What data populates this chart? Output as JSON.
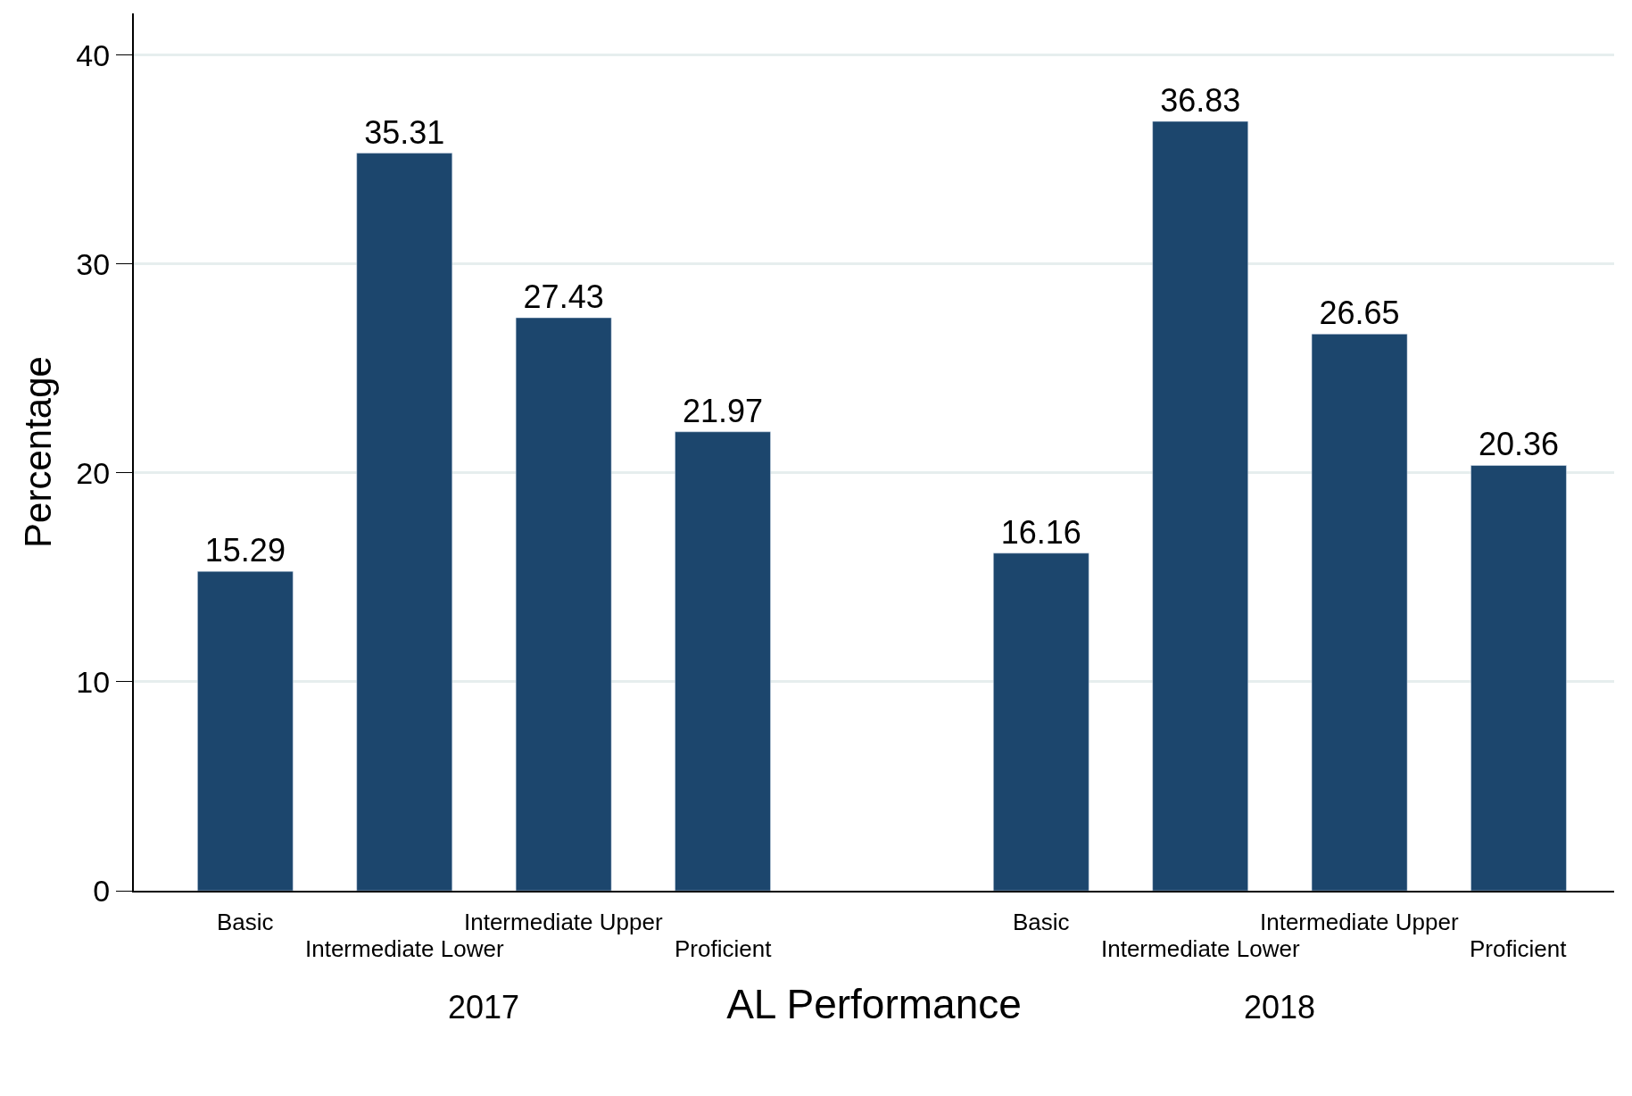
{
  "chart_data": {
    "type": "bar",
    "xlabel": "AL Performance",
    "ylabel": "Percentage",
    "categories": [
      "Basic",
      "Intermediate Lower",
      "Intermediate Upper",
      "Proficient",
      null,
      "Basic",
      "Intermediate Lower",
      "Intermediate Upper",
      "Proficient"
    ],
    "values": [
      15.29,
      35.31,
      27.43,
      21.97,
      null,
      16.16,
      36.83,
      26.65,
      20.36
    ],
    "color": "#1c466d",
    "data_labels": true,
    "grid": "y",
    "legend": false,
    "ylim": [
      0,
      42
    ],
    "yticks": [
      0,
      10,
      20,
      30,
      40
    ],
    "annotations": [
      "2017",
      "2018"
    ]
  }
}
